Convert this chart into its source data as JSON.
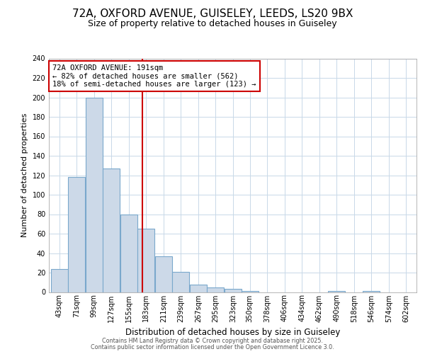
{
  "title_line1": "72A, OXFORD AVENUE, GUISELEY, LEEDS, LS20 9BX",
  "title_line2": "Size of property relative to detached houses in Guiseley",
  "xlabel": "Distribution of detached houses by size in Guiseley",
  "ylabel": "Number of detached properties",
  "bin_labels": [
    "43sqm",
    "71sqm",
    "99sqm",
    "127sqm",
    "155sqm",
    "183sqm",
    "211sqm",
    "239sqm",
    "267sqm",
    "295sqm",
    "323sqm",
    "350sqm",
    "378sqm",
    "406sqm",
    "434sqm",
    "462sqm",
    "490sqm",
    "518sqm",
    "546sqm",
    "574sqm",
    "602sqm"
  ],
  "bin_left_edges": [
    43,
    71,
    99,
    127,
    155,
    183,
    211,
    239,
    267,
    295,
    323,
    350,
    378,
    406,
    434,
    462,
    490,
    518,
    546,
    574,
    602
  ],
  "bin_width": 28,
  "bar_heights": [
    24,
    118,
    200,
    127,
    80,
    65,
    37,
    21,
    8,
    5,
    3,
    1,
    0,
    0,
    0,
    0,
    1,
    0,
    1,
    0,
    0
  ],
  "bar_color": "#ccd9e8",
  "bar_edge_color": "#7aa8cc",
  "plot_bg_color": "#ffffff",
  "fig_bg_color": "#ffffff",
  "grid_color": "#c8d8e8",
  "red_line_x": 191,
  "annotation_text_line1": "72A OXFORD AVENUE: 191sqm",
  "annotation_text_line2": "← 82% of detached houses are smaller (562)",
  "annotation_text_line3": "18% of semi-detached houses are larger (123) →",
  "ann_box_edge_color": "#cc0000",
  "footer_line1": "Contains HM Land Registry data © Crown copyright and database right 2025.",
  "footer_line2": "Contains public sector information licensed under the Open Government Licence 3.0.",
  "ylim": [
    0,
    240
  ],
  "yticks": [
    0,
    20,
    40,
    60,
    80,
    100,
    120,
    140,
    160,
    180,
    200,
    220,
    240
  ],
  "title1_fontsize": 11,
  "title2_fontsize": 9,
  "ylabel_fontsize": 8,
  "xlabel_fontsize": 8.5,
  "tick_fontsize": 7,
  "ann_fontsize": 7.5,
  "footer_fontsize": 5.8
}
